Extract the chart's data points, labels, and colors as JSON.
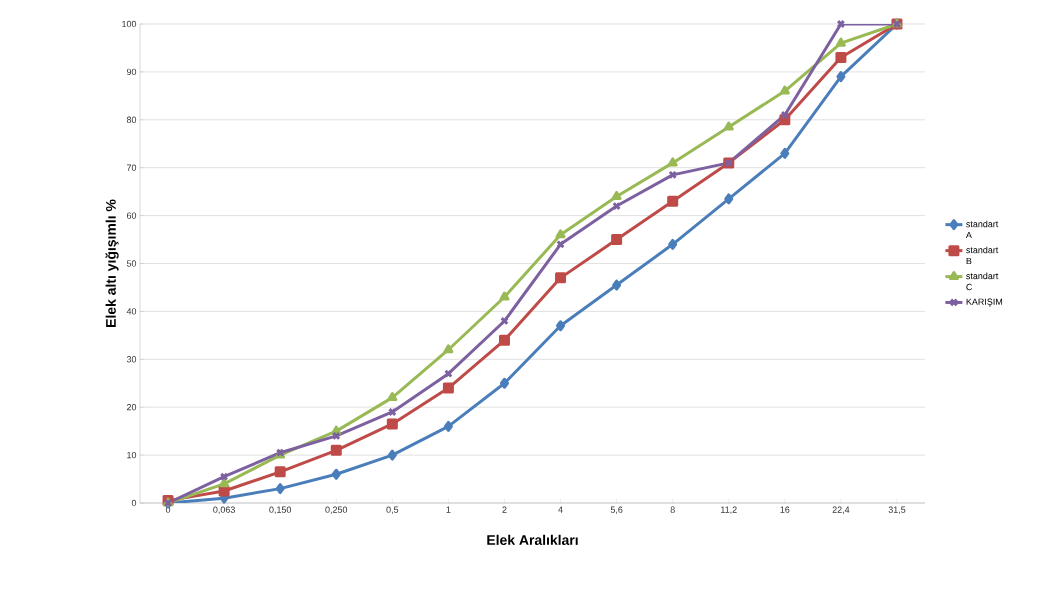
{
  "chart_data": {
    "type": "line",
    "xlabel": "Elek Aralıkları",
    "ylabel": "Elek altı yığışımlı %",
    "categories": [
      "0",
      "0,063",
      "0,150",
      "0,250",
      "0,5",
      "1",
      "2",
      "4",
      "5,6",
      "8",
      "11,2",
      "16",
      "22,4",
      "31,5"
    ],
    "series": [
      {
        "name": "standart A",
        "color": "#4a7ebb",
        "marker": "diamond",
        "values": [
          0,
          1,
          3,
          6,
          10,
          16,
          25,
          37,
          45.5,
          54,
          63.5,
          73,
          89,
          100
        ]
      },
      {
        "name": "standart B",
        "color": "#be4b48",
        "marker": "square",
        "values": [
          0.5,
          2.5,
          6.5,
          11,
          16.5,
          24,
          34,
          47,
          55,
          63,
          71,
          80,
          93,
          100
        ]
      },
      {
        "name": "standart C",
        "color": "#98b954",
        "marker": "triangle",
        "values": [
          0,
          4,
          10,
          15,
          22,
          32,
          43,
          56,
          64,
          71,
          78.5,
          86,
          96,
          100
        ]
      },
      {
        "name": "KARIŞIM",
        "color": "#7d60a0",
        "marker": "cross",
        "values": [
          0,
          5.5,
          10.5,
          14,
          19,
          27,
          38,
          54,
          62,
          68.5,
          71,
          81,
          100,
          100
        ]
      }
    ],
    "ylim": [
      0,
      100
    ],
    "yticks": [
      0,
      10,
      20,
      30,
      40,
      50,
      60,
      70,
      80,
      90,
      100
    ],
    "grid": "y",
    "legend": "right",
    "line_style": "solid"
  }
}
